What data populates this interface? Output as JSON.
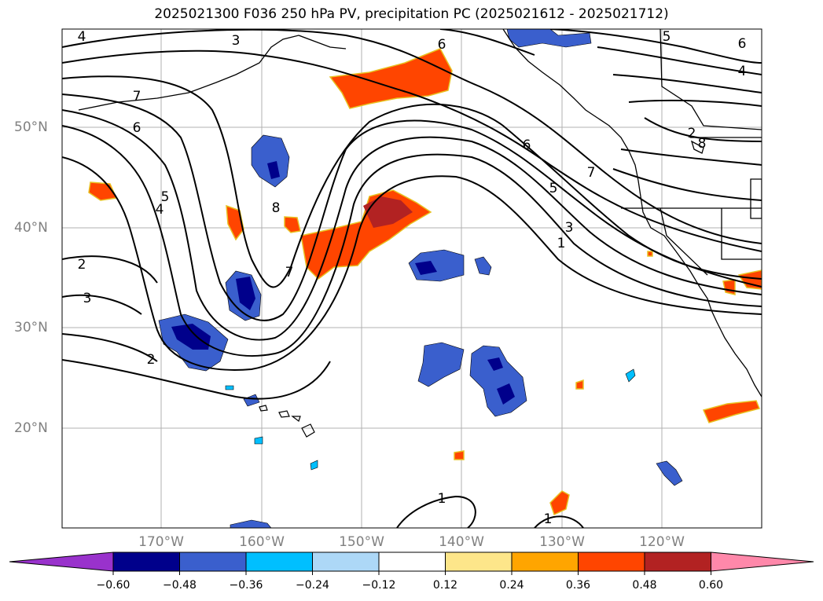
{
  "title": "2025021300 F036 250 hPa PV, precipitation PC (2025021612 - 2025021712)",
  "lat_labels": [
    "50°N",
    "40°N",
    "30°N",
    "20°N"
  ],
  "lon_labels": [
    "170°W",
    "160°W",
    "150°W",
    "140°W",
    "130°W",
    "120°W"
  ],
  "colorbar": {
    "ticks": [
      "−0.60",
      "−0.48",
      "−0.36",
      "−0.24",
      "−0.12",
      "0.12",
      "0.24",
      "0.36",
      "0.48",
      "0.60"
    ],
    "colors": [
      "#9932cc",
      "#00008b",
      "#3a5fcd",
      "#00bfff",
      "#add8f7",
      "#ffffff",
      "#fde68a",
      "#ffa500",
      "#ff4500",
      "#b22222",
      "#ff88aa"
    ]
  },
  "contour_labels": [
    "4",
    "3",
    "6",
    "5",
    "6",
    "4",
    "7",
    "6",
    "5",
    "4",
    "2",
    "3",
    "2",
    "8",
    "7",
    "6",
    "7",
    "5",
    "3",
    "1",
    "2",
    "8",
    "1",
    "1"
  ],
  "colors": {
    "contour": "#000000",
    "coast": "#000000",
    "grid": "#b0b0b0",
    "axis_label": "#808080"
  }
}
